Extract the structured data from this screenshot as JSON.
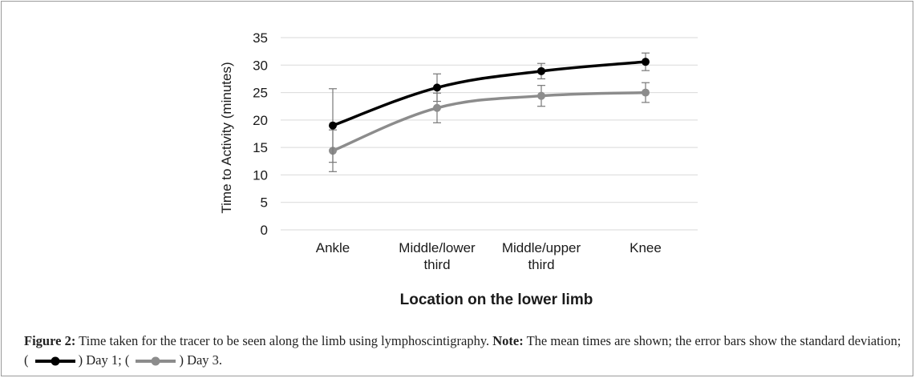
{
  "chart_data": {
    "type": "line",
    "title": "",
    "xlabel": "Location on the lower limb",
    "ylabel": "Time to Activity (minutes)",
    "categories": [
      "Ankle",
      "Middle/lower third",
      "Middle/upper third",
      "Knee"
    ],
    "category_lines": [
      [
        "Ankle"
      ],
      [
        "Middle/lower",
        "third"
      ],
      [
        "Middle/upper",
        "third"
      ],
      [
        "Knee"
      ]
    ],
    "ylim": [
      0,
      35
    ],
    "yticks": [
      0,
      5,
      10,
      15,
      20,
      25,
      30,
      35
    ],
    "grid": true,
    "series": [
      {
        "name": "Day 1",
        "color": "#000000",
        "values": [
          19.0,
          25.9,
          28.9,
          30.6
        ],
        "error": [
          6.7,
          2.5,
          1.4,
          1.6
        ]
      },
      {
        "name": "Day 3",
        "color": "#8c8c8c",
        "values": [
          14.4,
          22.2,
          24.4,
          25.0
        ],
        "error": [
          3.8,
          2.7,
          1.9,
          1.8
        ]
      }
    ]
  },
  "caption": {
    "figure_label": "Figure 2:",
    "text": " Time taken for the tracer to be seen along the limb using lymphoscintigraphy. ",
    "note_label": "Note:",
    "note_text": " The mean times are shown; the error bars show the standard deviation; (",
    "day1_text": ") Day 1; (",
    "day3_text": ") Day 3."
  }
}
